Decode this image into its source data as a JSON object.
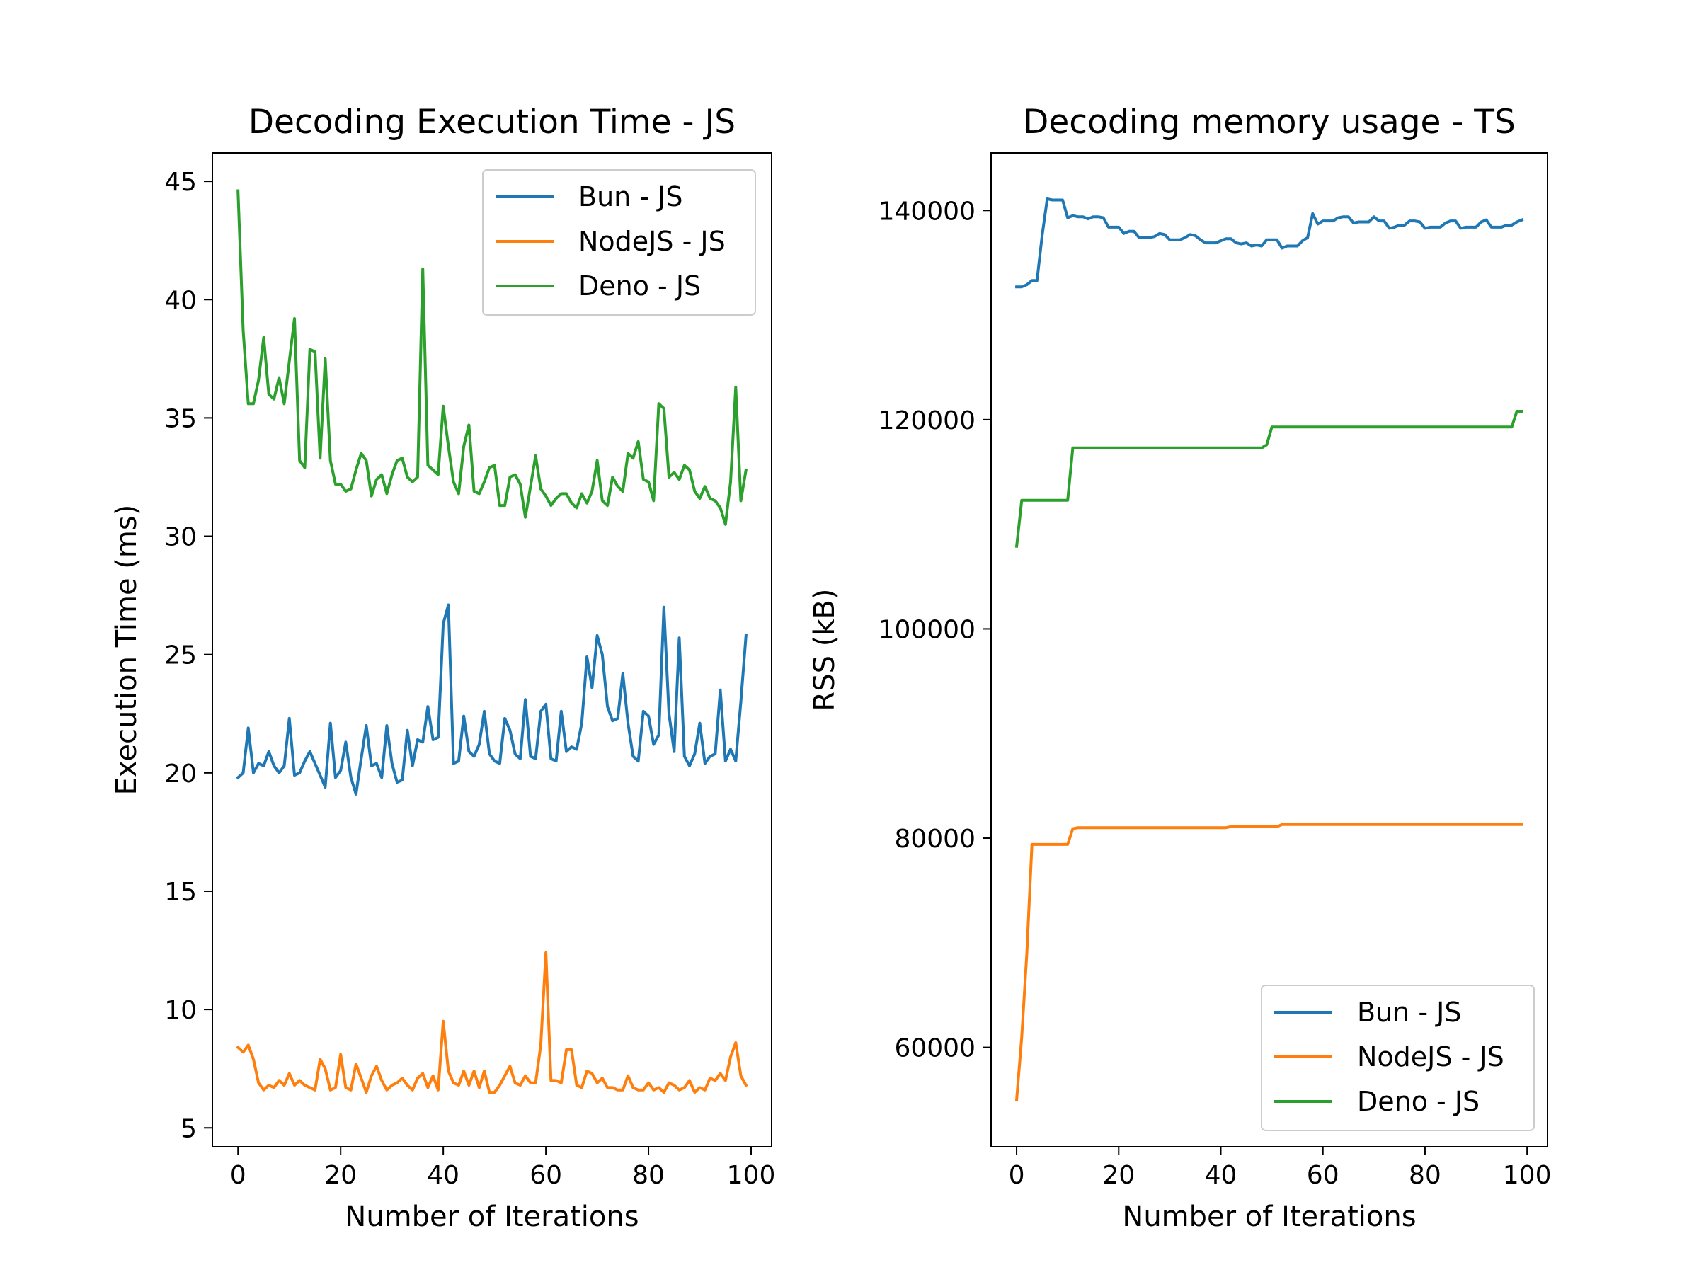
{
  "chart_data": [
    {
      "type": "line",
      "title": "Decoding Execution Time - JS",
      "xlabel": "Number of Iterations",
      "ylabel": "Execution Time (ms)",
      "xlim": [
        -5,
        104
      ],
      "ylim": [
        4.2,
        46.2
      ],
      "xticks": [
        0,
        20,
        40,
        60,
        80,
        100
      ],
      "yticks": [
        5,
        10,
        15,
        20,
        25,
        30,
        35,
        40,
        45
      ],
      "legend_position": "top-right",
      "grid": false,
      "x": [
        0,
        1,
        2,
        3,
        4,
        5,
        6,
        7,
        8,
        9,
        10,
        11,
        12,
        13,
        14,
        15,
        16,
        17,
        18,
        19,
        20,
        21,
        22,
        23,
        24,
        25,
        26,
        27,
        28,
        29,
        30,
        31,
        32,
        33,
        34,
        35,
        36,
        37,
        38,
        39,
        40,
        41,
        42,
        43,
        44,
        45,
        46,
        47,
        48,
        49,
        50,
        51,
        52,
        53,
        54,
        55,
        56,
        57,
        58,
        59,
        60,
        61,
        62,
        63,
        64,
        65,
        66,
        67,
        68,
        69,
        70,
        71,
        72,
        73,
        74,
        75,
        76,
        77,
        78,
        79,
        80,
        81,
        82,
        83,
        84,
        85,
        86,
        87,
        88,
        89,
        90,
        91,
        92,
        93,
        94,
        95,
        96,
        97,
        98,
        99
      ],
      "series": [
        {
          "name": "Bun - JS",
          "color": "#1f77b4",
          "values": [
            19.8,
            20.0,
            21.9,
            20.0,
            20.4,
            20.3,
            20.9,
            20.3,
            20.0,
            20.3,
            22.3,
            19.9,
            20.0,
            20.5,
            20.9,
            20.4,
            19.9,
            19.4,
            22.1,
            19.8,
            20.1,
            21.3,
            19.8,
            19.1,
            20.6,
            22.0,
            20.3,
            20.4,
            19.8,
            22.0,
            20.4,
            19.6,
            19.7,
            21.8,
            20.3,
            21.4,
            21.3,
            22.8,
            21.4,
            21.5,
            26.3,
            27.1,
            20.4,
            20.5,
            22.4,
            20.9,
            20.7,
            21.2,
            22.6,
            20.8,
            20.5,
            20.4,
            22.3,
            21.8,
            20.8,
            20.6,
            23.1,
            20.7,
            20.6,
            22.6,
            22.9,
            20.6,
            20.5,
            22.6,
            20.9,
            21.1,
            21.0,
            22.1,
            24.9,
            23.6,
            25.8,
            25.0,
            22.8,
            22.2,
            22.3,
            24.2,
            22.1,
            20.7,
            20.5,
            22.6,
            22.4,
            21.2,
            21.6,
            27.0,
            22.5,
            20.9,
            25.7,
            20.7,
            20.3,
            20.8,
            22.1,
            20.4,
            20.7,
            20.8,
            23.5,
            20.5,
            21.0,
            20.5,
            23.0,
            25.8
          ]
        },
        {
          "name": "NodeJS - JS",
          "color": "#ff7f0e",
          "values": [
            8.4,
            8.2,
            8.5,
            7.9,
            6.9,
            6.6,
            6.8,
            6.7,
            7.0,
            6.8,
            7.3,
            6.8,
            7.0,
            6.8,
            6.7,
            6.6,
            7.9,
            7.5,
            6.6,
            6.7,
            8.1,
            6.7,
            6.6,
            7.7,
            7.1,
            6.5,
            7.2,
            7.6,
            7.0,
            6.6,
            6.8,
            6.9,
            7.1,
            6.8,
            6.6,
            7.1,
            7.3,
            6.7,
            7.2,
            6.6,
            9.5,
            7.4,
            6.9,
            6.8,
            7.4,
            6.8,
            7.4,
            6.7,
            7.4,
            6.5,
            6.5,
            6.8,
            7.2,
            7.6,
            6.9,
            6.8,
            7.2,
            6.9,
            6.9,
            8.5,
            12.4,
            7.0,
            7.0,
            6.9,
            8.3,
            8.3,
            6.8,
            6.7,
            7.4,
            7.3,
            6.9,
            7.1,
            6.7,
            6.7,
            6.6,
            6.6,
            7.2,
            6.7,
            6.6,
            6.6,
            6.9,
            6.6,
            6.7,
            6.5,
            6.9,
            6.8,
            6.6,
            6.7,
            7.0,
            6.5,
            6.7,
            6.6,
            7.1,
            7.0,
            7.3,
            7.0,
            8.0,
            8.6,
            7.2,
            6.8
          ]
        },
        {
          "name": "Deno - JS",
          "color": "#2ca02c",
          "values": [
            44.6,
            38.7,
            35.6,
            35.6,
            36.6,
            38.4,
            36.0,
            35.8,
            36.7,
            35.6,
            37.4,
            39.2,
            33.2,
            32.9,
            37.9,
            37.8,
            33.3,
            37.5,
            33.2,
            32.2,
            32.2,
            31.9,
            32.0,
            32.8,
            33.5,
            33.2,
            31.7,
            32.4,
            32.6,
            31.8,
            32.6,
            33.2,
            33.3,
            32.5,
            32.3,
            32.5,
            41.3,
            33.0,
            32.8,
            32.6,
            35.5,
            33.8,
            32.3,
            31.8,
            33.8,
            34.7,
            31.9,
            31.8,
            32.3,
            32.9,
            33.0,
            31.3,
            31.3,
            32.5,
            32.6,
            32.2,
            30.8,
            32.1,
            33.4,
            32.0,
            31.7,
            31.3,
            31.6,
            31.8,
            31.8,
            31.4,
            31.2,
            31.8,
            31.4,
            31.9,
            33.2,
            31.5,
            31.3,
            32.5,
            32.1,
            31.9,
            33.5,
            33.3,
            34.0,
            32.4,
            32.3,
            31.5,
            35.6,
            35.4,
            32.5,
            32.7,
            32.4,
            33.0,
            32.8,
            31.9,
            31.6,
            32.1,
            31.6,
            31.5,
            31.2,
            30.5,
            32.3,
            36.3,
            31.5,
            32.8
          ]
        }
      ]
    },
    {
      "type": "line",
      "title": "Decoding memory usage - TS",
      "xlabel": "Number of Iterations",
      "ylabel": "RSS (kB)",
      "xlim": [
        -5,
        104
      ],
      "ylim": [
        50500,
        145500
      ],
      "xticks": [
        0,
        20,
        40,
        60,
        80,
        100
      ],
      "yticks": [
        60000,
        80000,
        100000,
        120000,
        140000
      ],
      "legend_position": "bottom-right",
      "grid": false,
      "x": [
        0,
        1,
        2,
        3,
        4,
        5,
        6,
        7,
        8,
        9,
        10,
        11,
        12,
        13,
        14,
        15,
        16,
        17,
        18,
        19,
        20,
        21,
        22,
        23,
        24,
        25,
        26,
        27,
        28,
        29,
        30,
        31,
        32,
        33,
        34,
        35,
        36,
        37,
        38,
        39,
        40,
        41,
        42,
        43,
        44,
        45,
        46,
        47,
        48,
        49,
        50,
        51,
        52,
        53,
        54,
        55,
        56,
        57,
        58,
        59,
        60,
        61,
        62,
        63,
        64,
        65,
        66,
        67,
        68,
        69,
        70,
        71,
        72,
        73,
        74,
        75,
        76,
        77,
        78,
        79,
        80,
        81,
        82,
        83,
        84,
        85,
        86,
        87,
        88,
        89,
        90,
        91,
        92,
        93,
        94,
        95,
        96,
        97,
        98,
        99
      ],
      "series": [
        {
          "name": "Bun - JS",
          "color": "#1f77b4",
          "values": [
            132700,
            132700,
            132900,
            133300,
            133300,
            137600,
            141100,
            141000,
            141000,
            141000,
            139300,
            139500,
            139400,
            139400,
            139200,
            139400,
            139400,
            139300,
            138400,
            138400,
            138400,
            137800,
            138000,
            138000,
            137400,
            137400,
            137400,
            137500,
            137800,
            137700,
            137200,
            137200,
            137200,
            137400,
            137700,
            137600,
            137200,
            136900,
            136900,
            136900,
            137100,
            137300,
            137300,
            136900,
            136800,
            136900,
            136600,
            136700,
            136600,
            137200,
            137200,
            137200,
            136400,
            136600,
            136600,
            136600,
            137100,
            137400,
            139700,
            138700,
            139000,
            139000,
            139000,
            139300,
            139400,
            139400,
            138800,
            138900,
            138900,
            138900,
            139400,
            139000,
            139000,
            138300,
            138400,
            138600,
            138600,
            139000,
            139000,
            138900,
            138300,
            138400,
            138400,
            138400,
            138800,
            139000,
            139000,
            138300,
            138400,
            138400,
            138400,
            138900,
            139100,
            138400,
            138400,
            138400,
            138600,
            138600,
            138900,
            139100
          ]
        },
        {
          "name": "NodeJS - JS",
          "color": "#ff7f0e",
          "values": [
            55000,
            61000,
            69000,
            79400,
            79400,
            79400,
            79400,
            79400,
            79400,
            79400,
            79400,
            80900,
            81000,
            81000,
            81000,
            81000,
            81000,
            81000,
            81000,
            81000,
            81000,
            81000,
            81000,
            81000,
            81000,
            81000,
            81000,
            81000,
            81000,
            81000,
            81000,
            81000,
            81000,
            81000,
            81000,
            81000,
            81000,
            81000,
            81000,
            81000,
            81000,
            81000,
            81100,
            81100,
            81100,
            81100,
            81100,
            81100,
            81100,
            81100,
            81100,
            81100,
            81300,
            81300,
            81300,
            81300,
            81300,
            81300,
            81300,
            81300,
            81300,
            81300,
            81300,
            81300,
            81300,
            81300,
            81300,
            81300,
            81300,
            81300,
            81300,
            81300,
            81300,
            81300,
            81300,
            81300,
            81300,
            81300,
            81300,
            81300,
            81300,
            81300,
            81300,
            81300,
            81300,
            81300,
            81300,
            81300,
            81300,
            81300,
            81300,
            81300,
            81300,
            81300,
            81300,
            81300,
            81300,
            81300,
            81300,
            81300
          ]
        },
        {
          "name": "Deno - JS",
          "color": "#2ca02c",
          "values": [
            107900,
            112300,
            112300,
            112300,
            112300,
            112300,
            112300,
            112300,
            112300,
            112300,
            112300,
            117300,
            117300,
            117300,
            117300,
            117300,
            117300,
            117300,
            117300,
            117300,
            117300,
            117300,
            117300,
            117300,
            117300,
            117300,
            117300,
            117300,
            117300,
            117300,
            117300,
            117300,
            117300,
            117300,
            117300,
            117300,
            117300,
            117300,
            117300,
            117300,
            117300,
            117300,
            117300,
            117300,
            117300,
            117300,
            117300,
            117300,
            117300,
            117600,
            119300,
            119300,
            119300,
            119300,
            119300,
            119300,
            119300,
            119300,
            119300,
            119300,
            119300,
            119300,
            119300,
            119300,
            119300,
            119300,
            119300,
            119300,
            119300,
            119300,
            119300,
            119300,
            119300,
            119300,
            119300,
            119300,
            119300,
            119300,
            119300,
            119300,
            119300,
            119300,
            119300,
            119300,
            119300,
            119300,
            119300,
            119300,
            119300,
            119300,
            119300,
            119300,
            119300,
            119300,
            119300,
            119300,
            119300,
            119300,
            120800,
            120800
          ]
        }
      ]
    }
  ]
}
